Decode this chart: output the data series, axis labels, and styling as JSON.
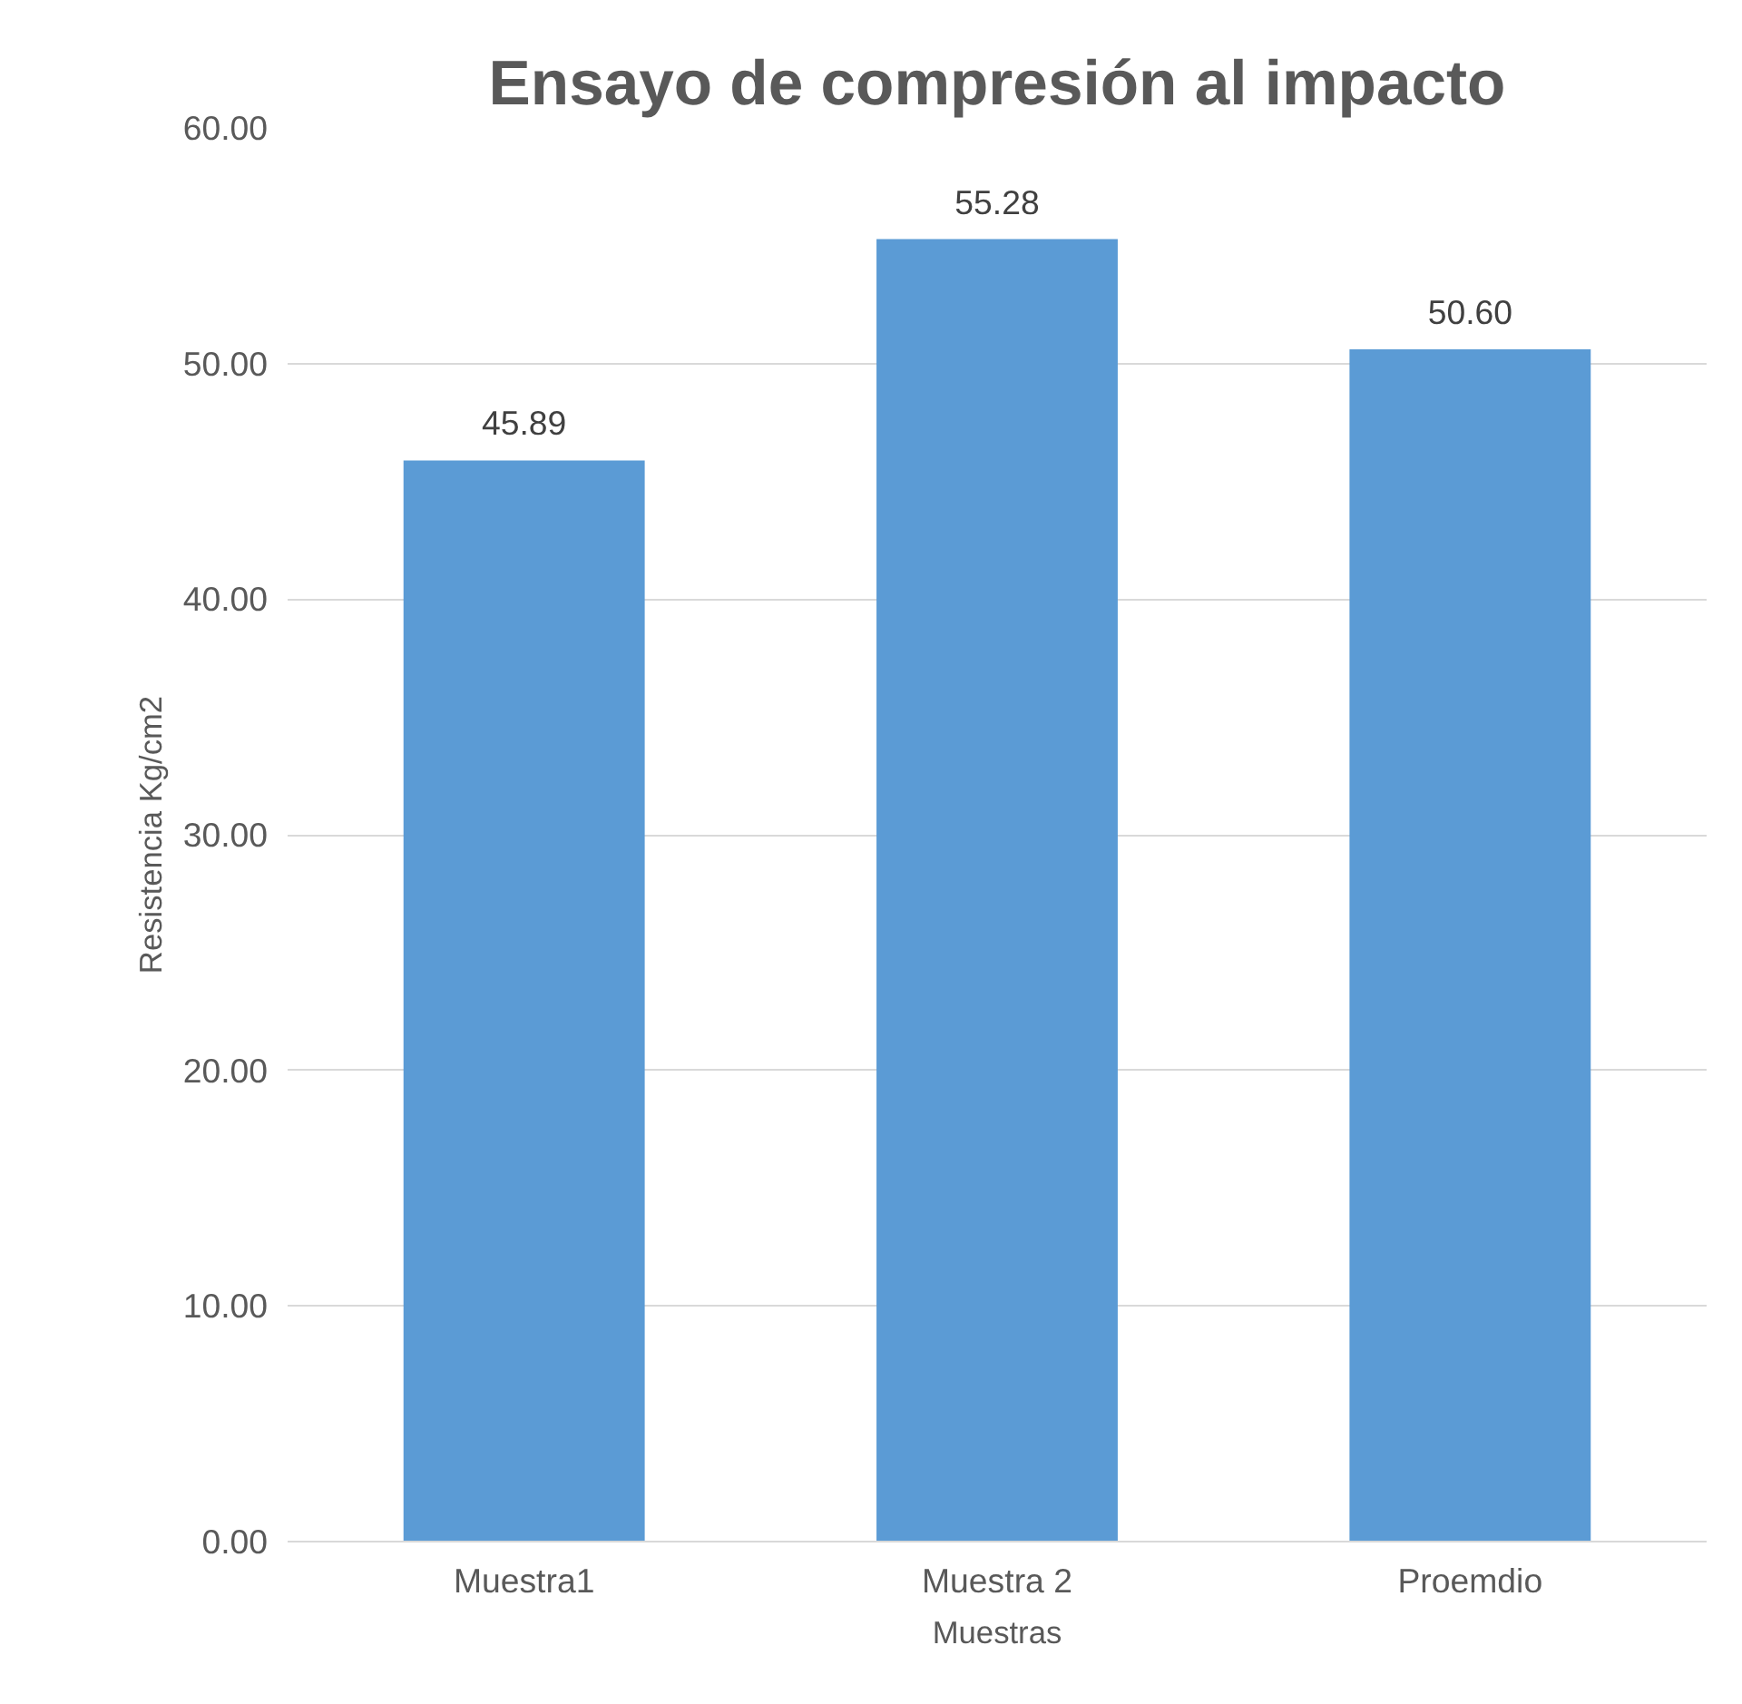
{
  "chart_data": {
    "type": "bar",
    "title": "Ensayo de compresión al impacto",
    "xlabel": "Muestras",
    "ylabel": "Resistencia Kg/cm2",
    "categories": [
      "Muestra1",
      "Muestra 2",
      "Proemdio"
    ],
    "values": [
      45.89,
      55.28,
      50.6
    ],
    "value_labels": [
      "45.89",
      "55.28",
      "50.60"
    ],
    "color": "#5b9bd5",
    "ylim": [
      0,
      60
    ],
    "yticks": [
      {
        "value": 0,
        "label": "0.00"
      },
      {
        "value": 10,
        "label": "10.00"
      },
      {
        "value": 20,
        "label": "20.00"
      },
      {
        "value": 30,
        "label": "30.00"
      },
      {
        "value": 40,
        "label": "40.00"
      },
      {
        "value": 50,
        "label": "50.00"
      },
      {
        "value": 60,
        "label": "60.00"
      }
    ],
    "grid": "y"
  }
}
